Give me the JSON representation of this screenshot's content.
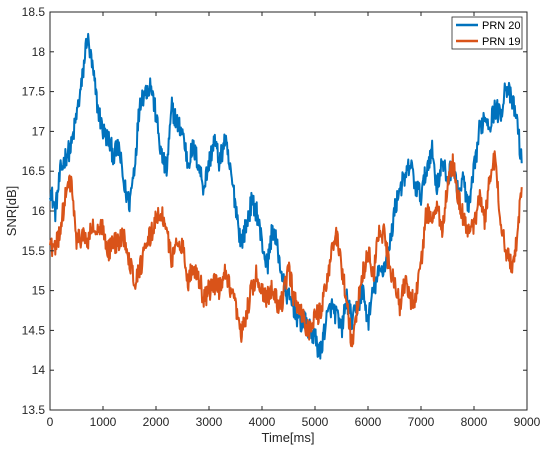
{
  "chart_data": {
    "type": "line",
    "title": "",
    "xlabel": "Time[ms]",
    "ylabel": "SNR[dB]",
    "xlim": [
      0,
      9000
    ],
    "ylim": [
      13.5,
      18.5
    ],
    "xticks": [
      0,
      1000,
      2000,
      3000,
      4000,
      5000,
      6000,
      7000,
      8000,
      9000
    ],
    "yticks": [
      13.5,
      14,
      14.5,
      15,
      15.5,
      16,
      16.5,
      17,
      17.5,
      18,
      18.5
    ],
    "xtick_labels": [
      "0",
      "1000",
      "2000",
      "3000",
      "4000",
      "5000",
      "6000",
      "7000",
      "8000",
      "9000"
    ],
    "ytick_labels": [
      "13.5",
      "14",
      "14.5",
      "15",
      "15.5",
      "16",
      "16.5",
      "17",
      "17.5",
      "18",
      "18.5"
    ],
    "grid": false,
    "legend_position": "top-right",
    "series": [
      {
        "name": "PRN 20",
        "color": "#0072BD",
        "x": [
          0,
          100,
          200,
          300,
          400,
          500,
          600,
          700,
          800,
          900,
          1000,
          1100,
          1200,
          1300,
          1400,
          1500,
          1600,
          1700,
          1800,
          1900,
          2000,
          2100,
          2200,
          2300,
          2400,
          2500,
          2600,
          2700,
          2800,
          2900,
          3000,
          3100,
          3200,
          3300,
          3400,
          3500,
          3600,
          3700,
          3800,
          3900,
          4000,
          4100,
          4200,
          4300,
          4400,
          4500,
          4600,
          4700,
          4800,
          4900,
          5000,
          5100,
          5200,
          5300,
          5400,
          5500,
          5600,
          5700,
          5800,
          5900,
          6000,
          6100,
          6200,
          6300,
          6400,
          6500,
          6600,
          6700,
          6800,
          6900,
          7000,
          7100,
          7200,
          7300,
          7400,
          7500,
          7600,
          7700,
          7800,
          7900,
          8000,
          8100,
          8200,
          8300,
          8400,
          8500,
          8600,
          8700,
          8800,
          8900
        ],
        "y": [
          16.3,
          16.0,
          16.5,
          16.7,
          16.8,
          17.2,
          17.6,
          18.2,
          17.8,
          17.3,
          17.0,
          16.9,
          16.7,
          16.8,
          16.3,
          16.1,
          16.6,
          17.4,
          17.5,
          17.6,
          17.2,
          16.7,
          16.5,
          17.3,
          17.1,
          17.0,
          16.6,
          16.8,
          16.6,
          16.3,
          16.6,
          16.9,
          16.6,
          16.9,
          16.5,
          16.1,
          15.6,
          15.8,
          16.1,
          16.0,
          15.6,
          15.3,
          15.8,
          15.5,
          15.1,
          14.9,
          14.8,
          14.6,
          14.6,
          14.5,
          14.4,
          14.2,
          14.6,
          14.8,
          14.7,
          14.5,
          14.9,
          14.6,
          14.8,
          15.0,
          14.6,
          15.0,
          15.2,
          15.3,
          15.5,
          16.0,
          16.3,
          16.4,
          16.6,
          16.3,
          16.2,
          16.5,
          16.8,
          16.3,
          16.6,
          16.4,
          16.6,
          16.2,
          16.4,
          16.0,
          16.5,
          17.0,
          17.2,
          17.1,
          17.3,
          17.2,
          17.6,
          17.4,
          17.2,
          16.6
        ]
      },
      {
        "name": "PRN 19",
        "color": "#D95319",
        "x": [
          0,
          100,
          200,
          300,
          400,
          500,
          600,
          700,
          800,
          900,
          1000,
          1100,
          1200,
          1300,
          1400,
          1500,
          1600,
          1700,
          1800,
          1900,
          2000,
          2100,
          2200,
          2300,
          2400,
          2500,
          2600,
          2700,
          2800,
          2900,
          3000,
          3100,
          3200,
          3300,
          3400,
          3500,
          3600,
          3700,
          3800,
          3900,
          4000,
          4100,
          4200,
          4300,
          4400,
          4500,
          4600,
          4700,
          4800,
          4900,
          5000,
          5100,
          5200,
          5300,
          5400,
          5500,
          5600,
          5700,
          5800,
          5900,
          6000,
          6100,
          6200,
          6300,
          6400,
          6500,
          6600,
          6700,
          6800,
          6900,
          7000,
          7100,
          7200,
          7300,
          7400,
          7500,
          7600,
          7700,
          7800,
          7900,
          8000,
          8100,
          8200,
          8300,
          8400,
          8500,
          8600,
          8700,
          8800,
          8900
        ],
        "y": [
          15.6,
          15.5,
          15.8,
          16.2,
          16.4,
          15.6,
          15.7,
          15.6,
          15.8,
          15.7,
          15.8,
          15.5,
          15.6,
          15.6,
          15.7,
          15.4,
          15.1,
          15.3,
          15.5,
          15.7,
          15.9,
          16.0,
          15.7,
          15.4,
          15.6,
          15.6,
          15.1,
          15.3,
          15.2,
          14.9,
          15.0,
          15.1,
          15.0,
          15.2,
          15.0,
          14.8,
          14.4,
          14.7,
          15.0,
          15.2,
          15.0,
          14.9,
          15.1,
          14.8,
          14.9,
          15.3,
          14.9,
          14.8,
          14.6,
          14.5,
          14.7,
          14.7,
          15.1,
          15.4,
          15.7,
          15.3,
          14.9,
          14.3,
          14.8,
          15.2,
          15.5,
          15.2,
          15.7,
          15.7,
          15.3,
          15.1,
          14.8,
          15.1,
          14.9,
          14.9,
          15.3,
          16.0,
          15.9,
          16.0,
          15.8,
          16.3,
          16.6,
          16.2,
          15.9,
          15.7,
          15.8,
          16.2,
          15.9,
          16.4,
          16.7,
          15.9,
          15.5,
          15.3,
          15.6,
          16.3
        ]
      }
    ]
  }
}
